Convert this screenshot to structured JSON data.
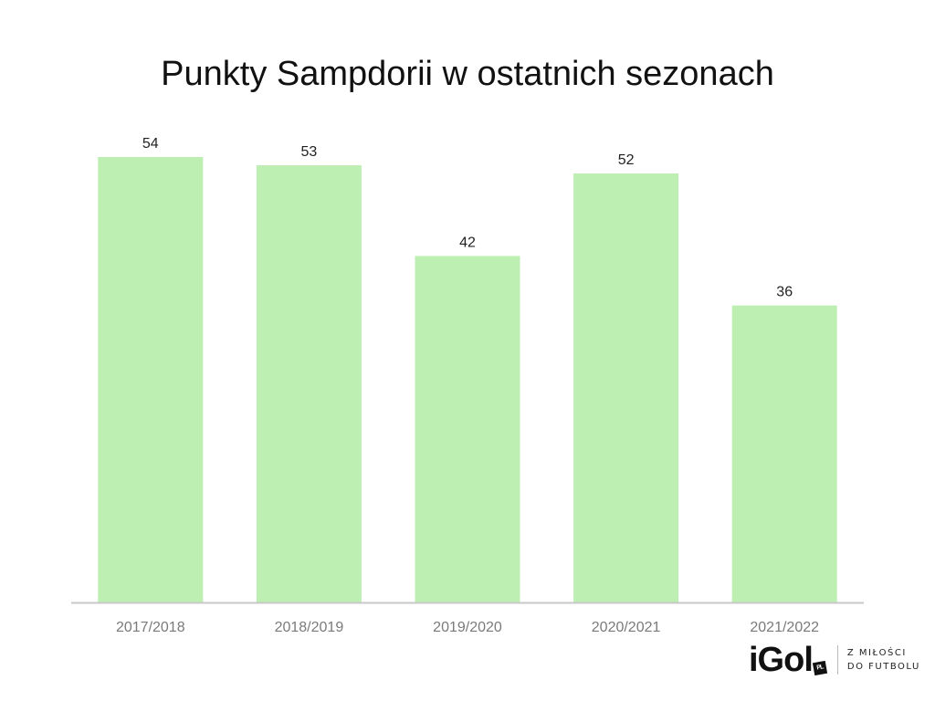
{
  "chart_data": {
    "type": "bar",
    "title": "Punkty Sampdorii w ostatnich sezonach",
    "categories": [
      "2017/2018",
      "2018/2019",
      "2019/2020",
      "2020/2021",
      "2021/2022"
    ],
    "values": [
      54,
      53,
      42,
      52,
      36
    ],
    "xlabel": "",
    "ylabel": "",
    "ylim": [
      0,
      54
    ],
    "grid": false,
    "legend": "none",
    "bar_color": "#bdeeb2",
    "axis_color": "#c8c8c8"
  },
  "logo": {
    "mark": "iGol",
    "badge": "PL",
    "tagline_line1": "Z MIŁOŚCI",
    "tagline_line2": "DO FUTBOLU"
  }
}
